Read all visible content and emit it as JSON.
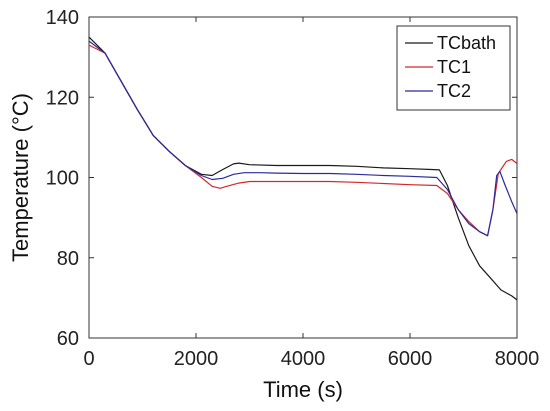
{
  "chart_data": {
    "type": "line",
    "title": "",
    "xlabel": "Time (s)",
    "ylabel": "Temperature (°C)",
    "xlim": [
      0,
      8000
    ],
    "ylim": [
      60,
      140
    ],
    "x_ticks": [
      0,
      2000,
      4000,
      6000,
      8000
    ],
    "y_ticks": [
      60,
      80,
      100,
      120,
      140
    ],
    "grid": false,
    "legend_position": "top-right",
    "series": [
      {
        "name": "TCbath",
        "color": "#1a1a1a",
        "points": [
          [
            0,
            135
          ],
          [
            300,
            131
          ],
          [
            600,
            124
          ],
          [
            900,
            117
          ],
          [
            1200,
            110.5
          ],
          [
            1500,
            106.5
          ],
          [
            1800,
            103
          ],
          [
            2100,
            100.8
          ],
          [
            2300,
            100.5
          ],
          [
            2500,
            102
          ],
          [
            2700,
            103.4
          ],
          [
            2800,
            103.6
          ],
          [
            3000,
            103.2
          ],
          [
            3500,
            103
          ],
          [
            4000,
            103
          ],
          [
            4500,
            103
          ],
          [
            5000,
            102.8
          ],
          [
            5500,
            102.4
          ],
          [
            6000,
            102.2
          ],
          [
            6400,
            102
          ],
          [
            6550,
            101.9
          ],
          [
            6700,
            98
          ],
          [
            6900,
            90
          ],
          [
            7100,
            83
          ],
          [
            7300,
            78
          ],
          [
            7500,
            75
          ],
          [
            7700,
            72
          ],
          [
            7900,
            70.5
          ],
          [
            8000,
            69.5
          ]
        ]
      },
      {
        "name": "TC1",
        "color": "#d62728",
        "points": [
          [
            0,
            133
          ],
          [
            300,
            131
          ],
          [
            600,
            124
          ],
          [
            900,
            117
          ],
          [
            1200,
            110.5
          ],
          [
            1500,
            106.5
          ],
          [
            1800,
            103
          ],
          [
            2100,
            100
          ],
          [
            2300,
            97.8
          ],
          [
            2450,
            97.3
          ],
          [
            2600,
            97.9
          ],
          [
            2800,
            98.6
          ],
          [
            3000,
            99
          ],
          [
            3500,
            99
          ],
          [
            4000,
            99
          ],
          [
            4500,
            99
          ],
          [
            5000,
            98.8
          ],
          [
            5500,
            98.5
          ],
          [
            6000,
            98.2
          ],
          [
            6500,
            98
          ],
          [
            6700,
            96
          ],
          [
            6900,
            92
          ],
          [
            7100,
            89
          ],
          [
            7300,
            86.5
          ],
          [
            7450,
            85.5
          ],
          [
            7550,
            92
          ],
          [
            7650,
            101
          ],
          [
            7800,
            104
          ],
          [
            7900,
            104.5
          ],
          [
            8000,
            103.5
          ]
        ]
      },
      {
        "name": "TC2",
        "color": "#2a2aa0",
        "points": [
          [
            0,
            134
          ],
          [
            300,
            131
          ],
          [
            600,
            124
          ],
          [
            900,
            117
          ],
          [
            1200,
            110.5
          ],
          [
            1500,
            106.5
          ],
          [
            1800,
            103
          ],
          [
            2100,
            100.5
          ],
          [
            2300,
            99.5
          ],
          [
            2500,
            99.8
          ],
          [
            2700,
            100.8
          ],
          [
            2900,
            101.2
          ],
          [
            3200,
            101.2
          ],
          [
            3500,
            101.1
          ],
          [
            4000,
            101
          ],
          [
            4500,
            101
          ],
          [
            5000,
            100.8
          ],
          [
            5500,
            100.5
          ],
          [
            6000,
            100.3
          ],
          [
            6500,
            100
          ],
          [
            6700,
            97
          ],
          [
            6900,
            92
          ],
          [
            7100,
            88.5
          ],
          [
            7300,
            86.5
          ],
          [
            7450,
            85.5
          ],
          [
            7550,
            92
          ],
          [
            7620,
            100.5
          ],
          [
            7680,
            101.5
          ],
          [
            7780,
            98
          ],
          [
            7900,
            94
          ],
          [
            8000,
            91
          ]
        ]
      }
    ]
  }
}
